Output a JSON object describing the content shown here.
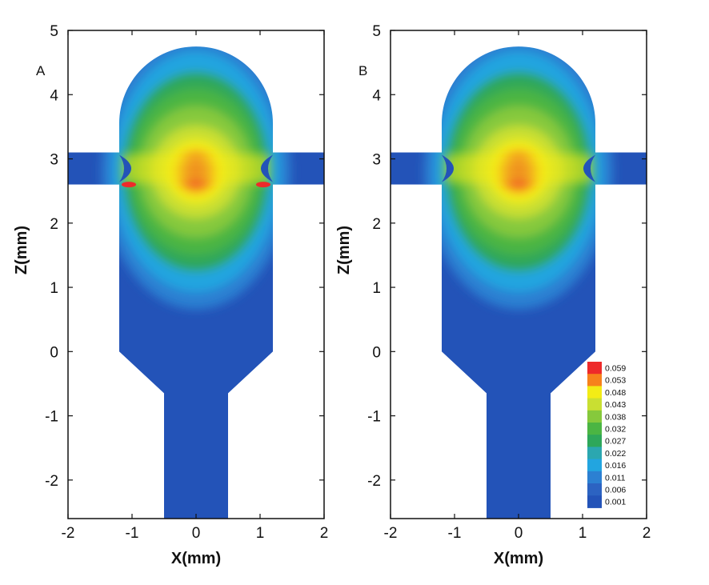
{
  "chart_data": [
    {
      "type": "heatmap",
      "panel_label": "A",
      "xlabel": "X(mm)",
      "ylabel": "Z(mm)",
      "xlim": [
        -2,
        2
      ],
      "ylim": [
        -2.6,
        5
      ],
      "xticks": [
        "-2",
        "-1",
        "0",
        "1",
        "2"
      ],
      "yticks": [
        "-2",
        "-1",
        "0",
        "1",
        "2",
        "3",
        "4",
        "5"
      ],
      "domain": {
        "chamber_half_width": 1.2,
        "chamber_top": 4.75,
        "chamber_bottom": 0,
        "channel_z_range": [
          2.6,
          3.1
        ],
        "outlet_half_width": 0.5,
        "outlet_start_z": -0.65
      },
      "peak": {
        "x": 0,
        "z": 2.8,
        "value": 0.059
      },
      "hot_spots": [
        {
          "x": -1.05,
          "z": 2.6
        },
        {
          "x": 1.05,
          "z": 2.6
        }
      ]
    },
    {
      "type": "heatmap",
      "panel_label": "B",
      "xlabel": "X(mm)",
      "ylabel": "Z(mm)",
      "xlim": [
        -2,
        2
      ],
      "ylim": [
        -2.6,
        5
      ],
      "xticks": [
        "-2",
        "-1",
        "0",
        "1",
        "2"
      ],
      "yticks": [
        "-2",
        "-1",
        "0",
        "1",
        "2",
        "3",
        "4",
        "5"
      ],
      "domain": {
        "chamber_half_width": 1.2,
        "chamber_top": 4.75,
        "chamber_bottom": 0,
        "channel_z_range": [
          2.6,
          3.1
        ],
        "outlet_half_width": 0.5,
        "outlet_start_z": -0.65
      },
      "peak": {
        "x": 0,
        "z": 2.8,
        "value": 0.059
      },
      "hot_spots": []
    }
  ],
  "legend": {
    "levels": [
      "0.059",
      "0.053",
      "0.048",
      "0.043",
      "0.038",
      "0.032",
      "0.027",
      "0.022",
      "0.016",
      "0.011",
      "0.006",
      "0.001"
    ],
    "colors": [
      "#ee2a2a",
      "#f7821c",
      "#f3ec16",
      "#c9df32",
      "#86c93c",
      "#4bb543",
      "#2ea75a",
      "#2ba7b0",
      "#22a5e0",
      "#2c80d2",
      "#2c63c2",
      "#2353b8"
    ]
  },
  "palette": {
    "background": "#2353b8",
    "light_blue": "#2c80d2",
    "cyan": "#22a5e0",
    "green": "#4bb543",
    "yellow": "#f3ec16",
    "red": "#ee2a2a"
  }
}
